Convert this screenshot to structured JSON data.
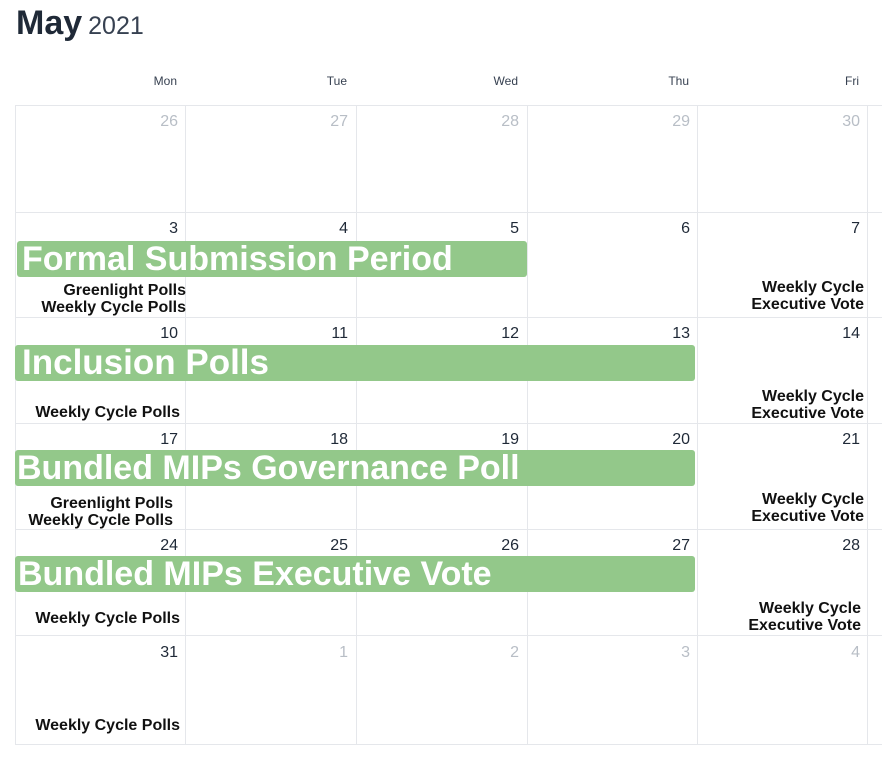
{
  "header": {
    "month": "May",
    "year": "2021"
  },
  "weekdays": [
    "Mon",
    "Tue",
    "Wed",
    "Thu",
    "Fri"
  ],
  "weeks": [
    {
      "days": [
        "26",
        "27",
        "28",
        "29",
        "30"
      ]
    },
    {
      "days": [
        "3",
        "4",
        "5",
        "6",
        "7"
      ]
    },
    {
      "days": [
        "10",
        "11",
        "12",
        "13",
        "14"
      ]
    },
    {
      "days": [
        "17",
        "18",
        "19",
        "20",
        "21"
      ]
    },
    {
      "days": [
        "24",
        "25",
        "26",
        "27",
        "28"
      ]
    },
    {
      "days": [
        "31",
        "1",
        "2",
        "3",
        "4"
      ]
    }
  ],
  "multi_day_events": [
    {
      "label": "Formal Submission Period"
    },
    {
      "label": "Inclusion Polls"
    },
    {
      "label": "Bundled MIPs Governance Poll"
    },
    {
      "label": "Bundled MIPs Executive Vote"
    }
  ],
  "day_events": {
    "greenlight": "Greenlight Polls",
    "weekly_polls": "Weekly Cycle Polls",
    "weekly_cycle": "Weekly Cycle",
    "executive_vote": "Executive Vote"
  },
  "colors": {
    "event_bar": "#93c88a",
    "other_month_text": "#b8bec6",
    "grid_line": "#e5e7eb"
  }
}
